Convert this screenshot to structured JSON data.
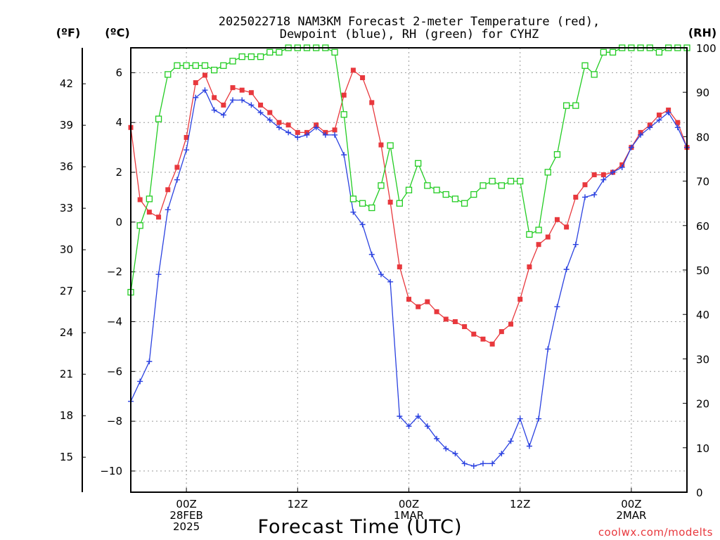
{
  "chart_data": {
    "type": "line",
    "title_line1": "2025022718 NAM3KM Forecast 2-meter Temperature (red),",
    "title_line2": "Dewpoint (blue), RH (green) for CYHZ",
    "xlabel": "Forecast Time (UTC)",
    "credit": "coolwx.com/modelts",
    "units": {
      "f": "(ºF)",
      "c": "(ºC)",
      "rh": "(RH)"
    },
    "x_hours": [
      0,
      1,
      2,
      3,
      4,
      5,
      6,
      7,
      8,
      9,
      10,
      11,
      12,
      13,
      14,
      15,
      16,
      17,
      18,
      19,
      20,
      21,
      22,
      23,
      24,
      25,
      26,
      27,
      28,
      29,
      30,
      31,
      32,
      33,
      34,
      35,
      36,
      37,
      38,
      39,
      40,
      41,
      42,
      43,
      44,
      45,
      46,
      47,
      48,
      49,
      50,
      51,
      52,
      53,
      54,
      55,
      56,
      57,
      58,
      59,
      60
    ],
    "x_range": [
      0,
      60
    ],
    "c_range": [
      -10.85,
      7.0
    ],
    "rh_range": [
      0,
      100
    ],
    "c_ticks": [
      6,
      4,
      2,
      0,
      -2,
      -4,
      -6,
      -8,
      -10
    ],
    "c_tick_labels": [
      "6",
      "4",
      "2",
      "0",
      "−2",
      "−4",
      "−6",
      "−8",
      "−10"
    ],
    "f_ticks": [
      42,
      39,
      36,
      33,
      30,
      27,
      24,
      21,
      18,
      15
    ],
    "rh_ticks": [
      100,
      90,
      80,
      70,
      60,
      50,
      40,
      30,
      20,
      10,
      0
    ],
    "x_ticks": [
      {
        "hour": 6,
        "labels": [
          "00Z",
          "28FEB",
          "2025"
        ]
      },
      {
        "hour": 18,
        "labels": [
          "12Z"
        ]
      },
      {
        "hour": 30,
        "labels": [
          "00Z",
          "1MAR"
        ]
      },
      {
        "hour": 42,
        "labels": [
          "12Z"
        ]
      },
      {
        "hour": 54,
        "labels": [
          "00Z",
          "2MAR"
        ]
      }
    ],
    "series": [
      {
        "name": "Temperature",
        "axis": "c",
        "color": "#e8383d",
        "marker": "filled-square",
        "values": [
          3.8,
          0.9,
          0.4,
          0.2,
          1.3,
          2.2,
          3.4,
          5.6,
          5.9,
          5.0,
          4.7,
          5.4,
          5.3,
          5.2,
          4.7,
          4.4,
          4.0,
          3.9,
          3.6,
          3.6,
          3.9,
          3.6,
          3.7,
          5.1,
          6.1,
          5.8,
          4.8,
          3.1,
          0.8,
          -1.8,
          -3.1,
          -3.4,
          -3.2,
          -3.6,
          -3.9,
          -4.0,
          -4.2,
          -4.5,
          -4.7,
          -4.9,
          -4.4,
          -4.1,
          -3.1,
          -1.8,
          -0.9,
          -0.6,
          0.1,
          -0.2,
          1.0,
          1.5,
          1.9,
          1.9,
          2.0,
          2.3,
          3.0,
          3.6,
          3.9,
          4.3,
          4.5,
          4.0,
          3.0
        ]
      },
      {
        "name": "Dewpoint",
        "axis": "c",
        "color": "#2a41e0",
        "marker": "plus",
        "values": [
          -7.2,
          -6.4,
          -5.6,
          -2.1,
          0.5,
          1.7,
          2.9,
          5.0,
          5.3,
          4.5,
          4.3,
          4.9,
          4.9,
          4.7,
          4.4,
          4.1,
          3.8,
          3.6,
          3.4,
          3.5,
          3.8,
          3.5,
          3.5,
          2.7,
          0.4,
          -0.1,
          -1.3,
          -2.1,
          -2.4,
          -7.8,
          -8.2,
          -7.8,
          -8.2,
          -8.7,
          -9.1,
          -9.3,
          -9.7,
          -9.8,
          -9.7,
          -9.7,
          -9.3,
          -8.8,
          -7.9,
          -9.0,
          -7.9,
          -5.1,
          -3.4,
          -1.9,
          -0.9,
          1.0,
          1.1,
          1.7,
          2.0,
          2.2,
          3.0,
          3.5,
          3.8,
          4.1,
          4.4,
          3.8,
          3.0
        ]
      },
      {
        "name": "RH",
        "axis": "rh",
        "color": "#22cc22",
        "marker": "open-square",
        "values": [
          45,
          60,
          66,
          84,
          94,
          96,
          96,
          96,
          96,
          95,
          96,
          97,
          98,
          98,
          98,
          99,
          99,
          100,
          100,
          100,
          100,
          100,
          99,
          85,
          66,
          65,
          64,
          69,
          78,
          65,
          68,
          74,
          69,
          68,
          67,
          66,
          65,
          67,
          69,
          70,
          69,
          70,
          70,
          58,
          59,
          72,
          76,
          87,
          87,
          96,
          94,
          99,
          99,
          100,
          100,
          100,
          100,
          99,
          100,
          100,
          100
        ]
      }
    ]
  }
}
